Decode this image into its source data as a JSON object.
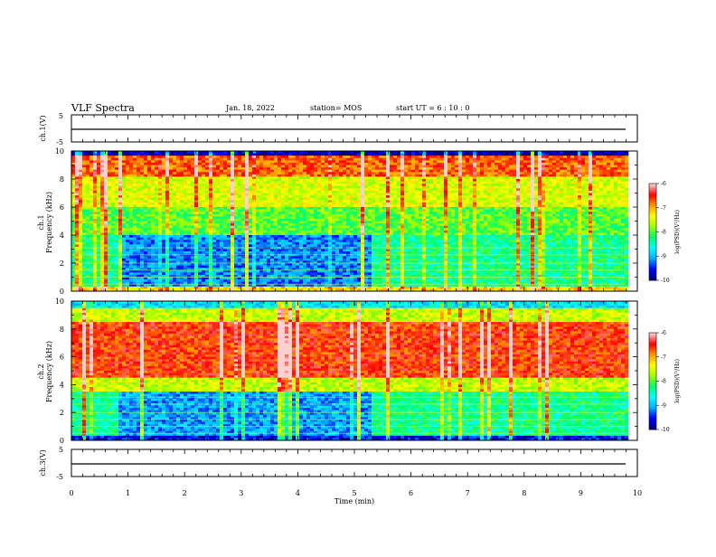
{
  "header": {
    "title": "VLF Spectra",
    "date": "Jan. 18, 2022",
    "station": "station= MOS",
    "start_ut": "start  UT =  6 : 10 : 0"
  },
  "colors": {
    "bg": "#ffffff",
    "colormap": [
      "#00007a",
      "#0000ff",
      "#00b0ff",
      "#00ffff",
      "#00ff66",
      "#a0ff00",
      "#ffff00",
      "#ff9900",
      "#ff0000",
      "#ffd0d0"
    ]
  },
  "chart_data": [
    {
      "id": "ch1_voltage",
      "type": "line",
      "ylabel": "ch.1(V)",
      "ylim": [
        -5,
        5
      ],
      "yticks": [
        "5",
        "-5"
      ],
      "x": [
        0,
        10
      ],
      "y": [
        0,
        0
      ]
    },
    {
      "id": "ch1_spectrogram",
      "type": "heatmap",
      "ylabel": "ch.1\nFrequency (kHz)",
      "ylim": [
        0,
        10
      ],
      "xlim": [
        0,
        10
      ],
      "yticks": [
        "0",
        "2",
        "4",
        "6",
        "8",
        "10"
      ],
      "colorbar": {
        "label": "log(PSD)(V²/Hz)",
        "range": [
          -10,
          -6
        ],
        "ticks": [
          "-6",
          "-7",
          "-8",
          "-9",
          "-10"
        ]
      },
      "notes": "Strong emission (red) 8-9.5 kHz; weaker (green/blue) below 6 kHz; quiet interval ~0.8-5.3 min below 4 kHz"
    },
    {
      "id": "ch2_spectrogram",
      "type": "heatmap",
      "ylabel": "ch.2\nFrequency (kHz)",
      "ylim": [
        0,
        10
      ],
      "xlim": [
        0,
        10
      ],
      "yticks": [
        "0",
        "2",
        "4",
        "6",
        "8",
        "10"
      ],
      "colorbar": {
        "label": "log(PSD)(V²/Hz)",
        "range": [
          -10,
          -6
        ],
        "ticks": [
          "-6",
          "-7",
          "-8",
          "-9",
          "-10"
        ]
      },
      "notes": "Broad strong band (red) ~4-8.5 kHz; weaker below 4 kHz"
    },
    {
      "id": "ch3_voltage",
      "type": "line",
      "ylabel": "ch.3(V)",
      "ylim": [
        -5,
        5
      ],
      "yticks": [
        "5",
        "-5"
      ],
      "x": [
        0,
        10
      ],
      "y": [
        0,
        0
      ]
    }
  ],
  "xaxis": {
    "label": "Time (min)",
    "ticks": [
      "0",
      "1",
      "2",
      "3",
      "4",
      "5",
      "6",
      "7",
      "8",
      "9",
      "10"
    ],
    "range": [
      0,
      10
    ]
  }
}
